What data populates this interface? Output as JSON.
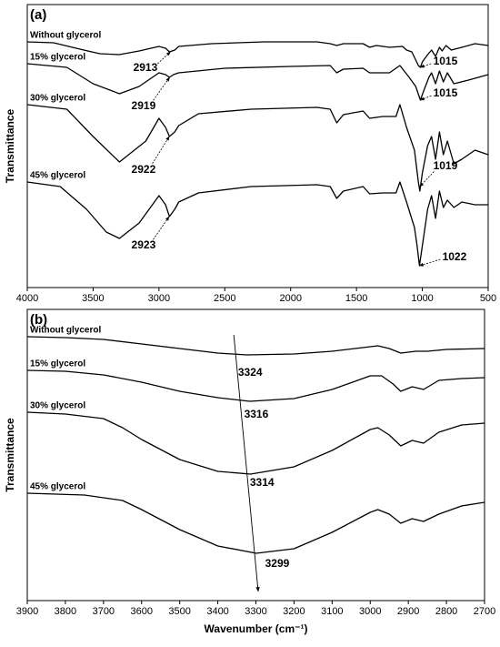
{
  "chart_data": [
    {
      "type": "line",
      "title": "(a)",
      "y_label": "Transmittance",
      "xlim": [
        4000,
        500
      ],
      "xticks": [
        4000,
        3500,
        3000,
        2500,
        2000,
        1500,
        1000,
        500
      ],
      "ylim": [
        0,
        311
      ],
      "series": [
        {
          "name": "Without glycerol",
          "color": "#000000",
          "x": [
            4000,
            3800,
            3600,
            3450,
            3300,
            3150,
            3000,
            2950,
            2920,
            2880,
            2850,
            2600,
            2200,
            1800,
            1700,
            1650,
            1600,
            1450,
            1400,
            1350,
            1250,
            1150,
            1120,
            1080,
            1050,
            1030,
            1015,
            1000,
            960,
            930,
            900,
            870,
            850,
            820,
            780,
            700,
            600,
            500
          ],
          "values": [
            270,
            269,
            262,
            257,
            256,
            260,
            265,
            263,
            259,
            261,
            265,
            268,
            270,
            270,
            268,
            266,
            268,
            268,
            264,
            266,
            264,
            265,
            261,
            259,
            250,
            244,
            242,
            248,
            256,
            261,
            254,
            264,
            260,
            266,
            261,
            264,
            268,
            266
          ]
        },
        {
          "name": "15% glycerol",
          "color": "#000000",
          "x": [
            4000,
            3700,
            3500,
            3300,
            3150,
            3000,
            2950,
            2920,
            2890,
            2850,
            2500,
            2000,
            1700,
            1650,
            1600,
            1450,
            1400,
            1250,
            1170,
            1100,
            1050,
            1015,
            990,
            950,
            930,
            900,
            870,
            840,
            810,
            760,
            650,
            500
          ],
          "values": [
            246,
            242,
            224,
            213,
            221,
            236,
            234,
            231,
            234,
            236,
            241,
            243,
            244,
            236,
            240,
            241,
            236,
            236,
            244,
            231,
            221,
            206,
            216,
            231,
            236,
            224,
            238,
            226,
            236,
            224,
            228,
            234
          ]
        },
        {
          "name": "30% glycerol",
          "color": "#000000",
          "x": [
            4000,
            3700,
            3500,
            3300,
            3100,
            3000,
            2950,
            2920,
            2880,
            2850,
            2700,
            2300,
            1800,
            1700,
            1650,
            1600,
            1450,
            1400,
            1300,
            1200,
            1170,
            1120,
            1060,
            1030,
            1019,
            1000,
            960,
            930,
            900,
            870,
            840,
            810,
            760,
            700,
            600,
            500
          ],
          "values": [
            201,
            196,
            166,
            138,
            161,
            186,
            176,
            166,
            171,
            178,
            191,
            196,
            198,
            196,
            181,
            190,
            194,
            186,
            188,
            188,
            201,
            176,
            151,
            116,
            106,
            126,
            156,
            166,
            141,
            171,
            146,
            161,
            136,
            141,
            151,
            146
          ]
        },
        {
          "name": "45% glycerol",
          "color": "#000000",
          "x": [
            4000,
            3750,
            3550,
            3400,
            3300,
            3150,
            3000,
            2950,
            2920,
            2880,
            2850,
            2700,
            2300,
            1800,
            1700,
            1650,
            1600,
            1450,
            1400,
            1300,
            1200,
            1170,
            1120,
            1060,
            1040,
            1022,
            1000,
            960,
            930,
            900,
            870,
            840,
            810,
            760,
            700,
            600,
            500
          ],
          "values": [
            116,
            111,
            86,
            61,
            54,
            71,
            101,
            91,
            78,
            86,
            94,
            104,
            111,
            113,
            111,
            98,
            106,
            111,
            103,
            104,
            104,
            116,
            94,
            66,
            46,
            24,
            46,
            86,
            101,
            76,
            106,
            88,
            96,
            88,
            94,
            91,
            91
          ]
        }
      ],
      "annotations": [
        {
          "text": "2913",
          "xy": [
            2913,
            259
          ],
          "xytext": [
            3103,
            241
          ]
        },
        {
          "text": "2919",
          "xy": [
            2919,
            231
          ],
          "xytext": [
            3117,
            199
          ]
        },
        {
          "text": "2922",
          "xy": [
            2922,
            166
          ],
          "xytext": [
            3117,
            129
          ]
        },
        {
          "text": "2923",
          "xy": [
            2923,
            78
          ],
          "xytext": [
            3117,
            46
          ]
        },
        {
          "text": "1015",
          "xy": [
            1015,
            242
          ],
          "xytext": [
            825,
            248
          ]
        },
        {
          "text": "1015",
          "xy": [
            1015,
            206
          ],
          "xytext": [
            825,
            213
          ]
        },
        {
          "text": "1019",
          "xy": [
            1019,
            111
          ],
          "xytext": [
            825,
            133
          ]
        },
        {
          "text": "1022",
          "xy": [
            1022,
            24
          ],
          "xytext": [
            756,
            33
          ]
        }
      ]
    },
    {
      "type": "line",
      "title": "(b)",
      "y_label": "Transmittance",
      "x_label": "Wavenumber (cm⁻¹)",
      "xlim": [
        3900,
        2700
      ],
      "xticks": [
        3900,
        3800,
        3700,
        3600,
        3500,
        3400,
        3300,
        3200,
        3100,
        3000,
        2900,
        2800,
        2700
      ],
      "ylim": [
        0,
        320
      ],
      "series": [
        {
          "name": "Without glycerol",
          "color": "#000000",
          "x": [
            3900,
            3800,
            3700,
            3600,
            3500,
            3400,
            3324,
            3200,
            3100,
            3000,
            2980,
            2950,
            2920,
            2880,
            2850,
            2800,
            2700
          ],
          "values": [
            290,
            289,
            287,
            282,
            277,
            272,
            270,
            271,
            274,
            279,
            280,
            277,
            272,
            274,
            274,
            276,
            277
          ]
        },
        {
          "name": "15% glycerol",
          "color": "#000000",
          "x": [
            3900,
            3800,
            3700,
            3600,
            3500,
            3400,
            3316,
            3200,
            3100,
            3000,
            2970,
            2940,
            2920,
            2890,
            2860,
            2820,
            2760,
            2700
          ],
          "values": [
            253,
            252,
            248,
            240,
            230,
            223,
            219,
            222,
            232,
            247,
            247,
            238,
            230,
            235,
            232,
            242,
            244,
            245
          ]
        },
        {
          "name": "30% glycerol",
          "color": "#000000",
          "x": [
            3900,
            3800,
            3700,
            3650,
            3600,
            3500,
            3400,
            3314,
            3200,
            3100,
            3000,
            2980,
            2950,
            2920,
            2890,
            2860,
            2820,
            2760,
            2700
          ],
          "values": [
            207,
            205,
            200,
            190,
            177,
            155,
            142,
            139,
            147,
            165,
            188,
            190,
            182,
            170,
            176,
            173,
            185,
            193,
            195
          ]
        },
        {
          "name": "45% glycerol",
          "color": "#000000",
          "x": [
            3900,
            3750,
            3650,
            3600,
            3500,
            3400,
            3299,
            3200,
            3100,
            3000,
            2980,
            2950,
            2920,
            2890,
            2860,
            2820,
            2760,
            2700
          ],
          "values": [
            118,
            116,
            110,
            100,
            78,
            60,
            52,
            57,
            75,
            97,
            100,
            95,
            85,
            90,
            87,
            95,
            104,
            108
          ]
        }
      ],
      "annotations": [
        {
          "text": "3324",
          "xytext": [
            3315,
            250
          ]
        },
        {
          "text": "3316",
          "xytext": [
            3299,
            204
          ]
        },
        {
          "text": "3314",
          "xytext": [
            3284,
            129
          ]
        },
        {
          "text": "3299",
          "xytext": [
            3244,
            40
          ]
        }
      ],
      "arrow": {
        "from": [
          3358,
          292
        ],
        "to": [
          3294,
          10
        ]
      }
    }
  ]
}
